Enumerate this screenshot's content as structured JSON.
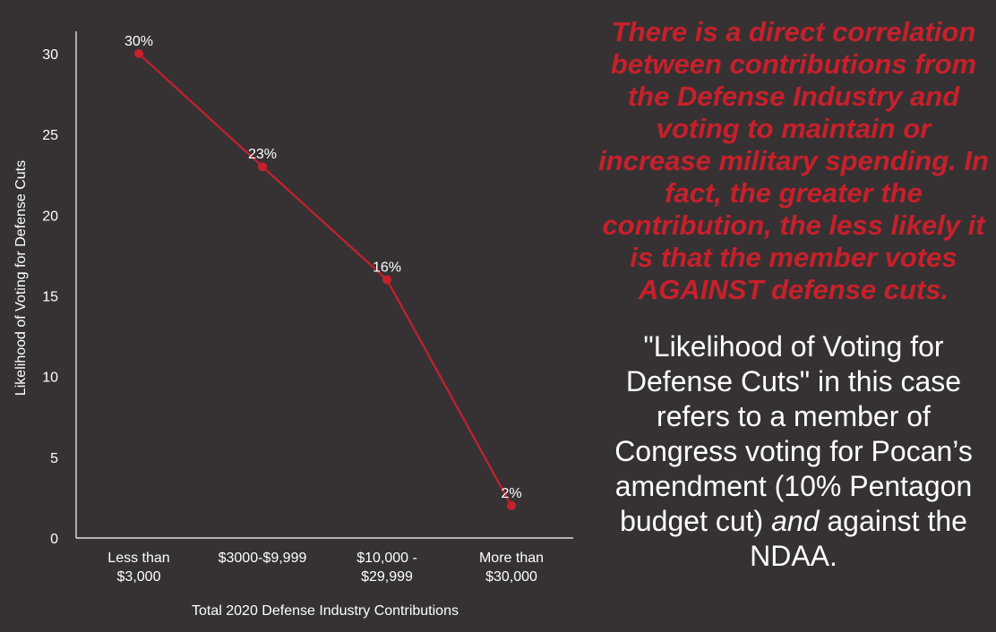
{
  "chart_data": {
    "type": "line",
    "categories": [
      "Less than\n$3,000",
      "$3000-$9,999",
      "$10,000 -\n$29,999",
      "More than\n$30,000"
    ],
    "series": [
      {
        "values": [
          30,
          23,
          16,
          2
        ],
        "data_labels": [
          "30%",
          "23%",
          "16%",
          "2%"
        ],
        "color": "#c8202b"
      }
    ],
    "xlabel": "Total 2020 Defense Industry Contributions",
    "ylabel": "Likelihood of Voting for Defense Cuts",
    "ylim": [
      0,
      30
    ],
    "yticks": [
      0,
      5,
      10,
      15,
      20,
      25,
      30
    ],
    "grid": false
  },
  "panel": {
    "claim": "There is a direct correlation between contributions from the Defense Industry and voting to maintain or increase military spending. In fact, the greater the contribution, the less likely it is that the member votes AGAINST defense cuts.",
    "definition_main": "\"Likelihood of Voting for Defense Cuts\" in this case refers to a member of Congress voting for Pocan’s amendment (10% Pentagon budget cut)",
    "definition_and": "and",
    "definition_end": "against the NDAA."
  },
  "colors": {
    "background": "#363233",
    "accent": "#c8202b",
    "text": "#ffffff"
  }
}
